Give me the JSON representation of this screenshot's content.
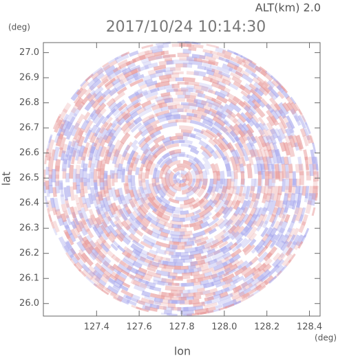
{
  "chart_data": {
    "type": "radar-ppi",
    "title": "2017/10/24 10:14:30",
    "altitude_label": "ALT(km) 2.0",
    "x_label": "lon",
    "y_label": "lat",
    "x_unit": "(deg)",
    "y_unit": "(deg)",
    "xlim": [
      127.15,
      128.45
    ],
    "ylim": [
      25.95,
      27.04
    ],
    "xticks": [
      127.4,
      127.6,
      127.8,
      {
        "value": 128.0,
        "label": "128.0"
      },
      128.2,
      128.4
    ],
    "yticks": [
      {
        "value": 26.0,
        "label": "26.0"
      },
      26.1,
      26.2,
      26.3,
      26.4,
      26.5,
      26.6,
      26.7,
      26.8,
      26.9,
      {
        "value": 27.0,
        "label": "27.0"
      }
    ]
  }
}
